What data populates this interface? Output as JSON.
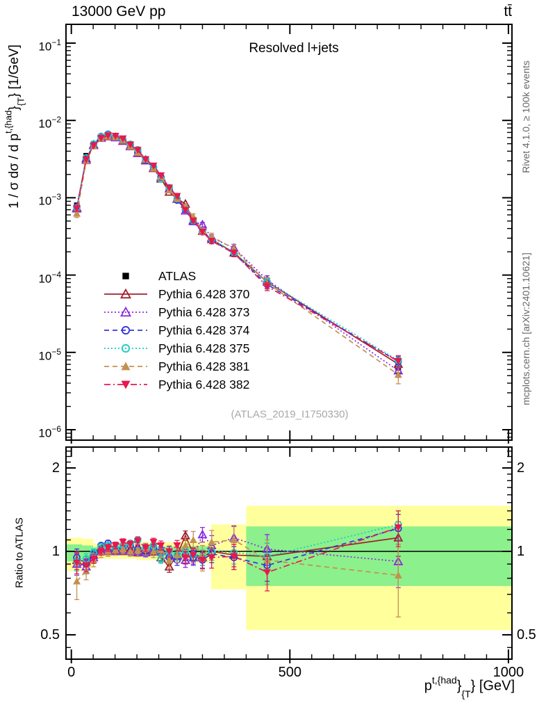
{
  "header": {
    "title_left": "13000 GeV pp",
    "title_right": "tt̄"
  },
  "side_notes": {
    "top": "Rivet 4.1.0, ≥ 100k events",
    "bottom": "mcplots.cern.ch [arXiv:2401.10621]"
  },
  "main_panel": {
    "annotation": "Resolved l+jets",
    "watermark": "(ATLAS_2019_I1750330)",
    "ylabel": {
      "base": "1 / σ dσ / d p",
      "sup": "t,{had",
      "mid": "}",
      "sub": "{T",
      "end": "} [1/GeV]"
    },
    "yticks": [
      {
        "base": "10",
        "exp": "−1",
        "value": 0.1
      },
      {
        "base": "10",
        "exp": "−2",
        "value": 0.01
      },
      {
        "base": "10",
        "exp": "−3",
        "value": 0.001
      },
      {
        "base": "10",
        "exp": "−4",
        "value": 0.0001
      },
      {
        "base": "10",
        "exp": "−5",
        "value": 1e-05
      },
      {
        "base": "10",
        "exp": "−6",
        "value": 1e-06
      }
    ]
  },
  "ratio_panel": {
    "ylabel": "Ratio to ATLAS",
    "yticks": [
      {
        "label": "2",
        "value": 2
      },
      {
        "label": "1",
        "value": 1
      },
      {
        "label": "0.5",
        "value": 0.5
      }
    ]
  },
  "xaxis": {
    "ticks": [
      {
        "label": "0",
        "value": 0
      },
      {
        "label": "500",
        "value": 500
      },
      {
        "label": "1000",
        "value": 1000
      }
    ],
    "label": {
      "base": "p",
      "sup": "t,{had",
      "mid": "}",
      "sub": "{T",
      "end": "} [GeV]"
    }
  },
  "colors": {
    "frame": "#000000",
    "yellow_band": "#ffff9c",
    "green_band": "#8cf08c",
    "atlas": "#000000",
    "watermark": "#a8a8a8",
    "notes": "#666666"
  },
  "chart_data": {
    "type": "line",
    "title": "13000 GeV pp",
    "subtitle": "Resolved l+jets",
    "xlabel": "p_T^{t,had} [GeV]",
    "ylabel": "1/σ dσ/dp_T^{t,had} [1/GeV]",
    "ratio_ylabel": "Ratio to ATLAS",
    "x_range_gev": [
      -12,
      1008
    ],
    "main_y_log_range": [
      7e-07,
      0.175
    ],
    "ratio_y_log_range": [
      0.41,
      2.38
    ],
    "legend_position": "middle-left",
    "grid": false,
    "x_gev": [
      12.5,
      34,
      51,
      68,
      84,
      101,
      118,
      135,
      152,
      170,
      188,
      205,
      224,
      242,
      261,
      279,
      300,
      321,
      372,
      448,
      748
    ],
    "atlas": {
      "label": "ATLAS",
      "marker": "square-filled",
      "color": "#000000",
      "values": [
        0.0008,
        0.0035,
        0.005,
        0.0059,
        0.0062,
        0.006,
        0.0054,
        0.0046,
        0.0038,
        0.00305,
        0.0024,
        0.00185,
        0.00135,
        0.001,
        0.00073,
        0.00052,
        0.00039,
        0.00029,
        0.0002,
        8.5e-05,
        6.3e-06
      ],
      "err_frac": [
        0.06,
        0.03,
        0.02,
        0.02,
        0.02,
        0.02,
        0.02,
        0.02,
        0.02,
        0.02,
        0.02,
        0.02,
        0.03,
        0.03,
        0.03,
        0.03,
        0.04,
        0.05,
        0.06,
        0.08,
        0.14
      ]
    },
    "series": [
      {
        "label": "Pythia 6.428 370",
        "color": "#a1202f",
        "dash": "solid",
        "marker": "triangle-up-open",
        "ratio": [
          0.93,
          0.92,
          0.97,
          1.02,
          1.0,
          1.01,
          1.0,
          1.02,
          0.99,
          1.01,
          1.0,
          0.95,
          0.88,
          0.97,
          1.14,
          0.98,
          0.95,
          1.0,
          0.97,
          0.96,
          1.12
        ],
        "ratio_err": [
          0.07,
          0.04,
          0.03,
          0.025,
          0.025,
          0.025,
          0.025,
          0.025,
          0.03,
          0.03,
          0.03,
          0.035,
          0.04,
          0.04,
          0.045,
          0.05,
          0.06,
          0.07,
          0.09,
          0.11,
          0.16
        ]
      },
      {
        "label": "Pythia 6.428 373",
        "color": "#8a2be2",
        "dash": "dotted",
        "marker": "triangle-up-open",
        "ratio": [
          0.9,
          0.88,
          0.95,
          1.0,
          1.02,
          1.0,
          1.01,
          1.0,
          1.0,
          0.99,
          1.02,
          1.0,
          0.97,
          0.96,
          0.93,
          0.95,
          1.15,
          1.05,
          1.12,
          1.02,
          0.92
        ],
        "ratio_err": [
          0.08,
          0.05,
          0.04,
          0.03,
          0.03,
          0.03,
          0.03,
          0.03,
          0.035,
          0.035,
          0.035,
          0.04,
          0.05,
          0.05,
          0.055,
          0.06,
          0.07,
          0.09,
          0.11,
          0.13,
          0.18
        ]
      },
      {
        "label": "Pythia 6.428 374",
        "color": "#3434d8",
        "dash": "dashed",
        "marker": "circle-open",
        "ratio": [
          0.95,
          0.9,
          0.98,
          1.05,
          1.07,
          1.02,
          1.03,
          1.05,
          1.02,
          1.0,
          1.03,
          1.0,
          0.95,
          0.93,
          0.97,
          0.95,
          0.93,
          0.98,
          0.95,
          0.89,
          1.21
        ],
        "ratio_err": [
          0.07,
          0.04,
          0.03,
          0.025,
          0.025,
          0.025,
          0.025,
          0.025,
          0.03,
          0.03,
          0.03,
          0.035,
          0.04,
          0.04,
          0.045,
          0.05,
          0.06,
          0.07,
          0.09,
          0.11,
          0.15
        ]
      },
      {
        "label": "Pythia 6.428 375",
        "color": "#14cfc3",
        "dash": "dotted",
        "marker": "circle-open",
        "ratio": [
          0.92,
          0.94,
          0.99,
          1.04,
          1.05,
          1.03,
          1.05,
          1.07,
          1.1,
          1.03,
          1.05,
          0.94,
          1.0,
          0.97,
          1.0,
          0.97,
          0.95,
          1.0,
          0.99,
          0.96,
          1.25
        ],
        "ratio_err": [
          0.07,
          0.04,
          0.03,
          0.025,
          0.025,
          0.025,
          0.025,
          0.025,
          0.03,
          0.03,
          0.03,
          0.035,
          0.04,
          0.04,
          0.045,
          0.05,
          0.06,
          0.07,
          0.09,
          0.11,
          0.15
        ]
      },
      {
        "label": "Pythia 6.428 381",
        "color": "#c3914f",
        "dash": "dashed",
        "marker": "triangle-up-filled",
        "ratio": [
          0.78,
          0.85,
          0.93,
          0.99,
          1.0,
          1.01,
          1.02,
          1.0,
          1.01,
          1.02,
          1.0,
          1.01,
          0.93,
          0.97,
          1.05,
          1.1,
          0.95,
          1.08,
          1.1,
          0.93,
          0.82
        ],
        "ratio_err": [
          0.11,
          0.06,
          0.05,
          0.04,
          0.04,
          0.04,
          0.04,
          0.04,
          0.05,
          0.05,
          0.05,
          0.06,
          0.06,
          0.06,
          0.07,
          0.08,
          0.1,
          0.11,
          0.14,
          0.17,
          0.24
        ]
      },
      {
        "label": "Pythia 6.428 382",
        "color": "#e81850",
        "dash": "dashdot",
        "marker": "triangle-down-filled",
        "ratio": [
          0.91,
          0.89,
          0.94,
          1.0,
          1.03,
          1.05,
          1.08,
          1.06,
          1.09,
          1.03,
          1.08,
          1.05,
          1.0,
          1.05,
          0.95,
          0.97,
          0.93,
          0.95,
          0.96,
          0.84,
          1.22
        ],
        "ratio_err": [
          0.08,
          0.045,
          0.035,
          0.03,
          0.03,
          0.03,
          0.03,
          0.03,
          0.035,
          0.03,
          0.035,
          0.04,
          0.045,
          0.045,
          0.05,
          0.055,
          0.065,
          0.08,
          0.1,
          0.12,
          0.18
        ]
      }
    ],
    "ratio_bands": {
      "yellow": [
        {
          "x0": -12,
          "x1": 25,
          "lo": 0.85,
          "hi": 1.12
        },
        {
          "x0": 25,
          "x1": 50,
          "lo": 0.87,
          "hi": 1.11
        },
        {
          "x0": 50,
          "x1": 150,
          "lo": 0.94,
          "hi": 1.07
        },
        {
          "x0": 150,
          "x1": 250,
          "lo": 0.93,
          "hi": 1.08
        },
        {
          "x0": 250,
          "x1": 320,
          "lo": 0.91,
          "hi": 1.09
        },
        {
          "x0": 320,
          "x1": 400,
          "lo": 0.73,
          "hi": 1.25
        },
        {
          "x0": 400,
          "x1": 1008,
          "lo": 0.52,
          "hi": 1.46
        }
      ],
      "green": [
        {
          "x0": -12,
          "x1": 25,
          "lo": 0.92,
          "hi": 1.06
        },
        {
          "x0": 25,
          "x1": 50,
          "lo": 0.94,
          "hi": 1.05
        },
        {
          "x0": 50,
          "x1": 150,
          "lo": 0.97,
          "hi": 1.035
        },
        {
          "x0": 150,
          "x1": 250,
          "lo": 0.96,
          "hi": 1.04
        },
        {
          "x0": 250,
          "x1": 320,
          "lo": 0.955,
          "hi": 1.045
        },
        {
          "x0": 400,
          "x1": 1008,
          "lo": 0.75,
          "hi": 1.23
        }
      ]
    }
  }
}
